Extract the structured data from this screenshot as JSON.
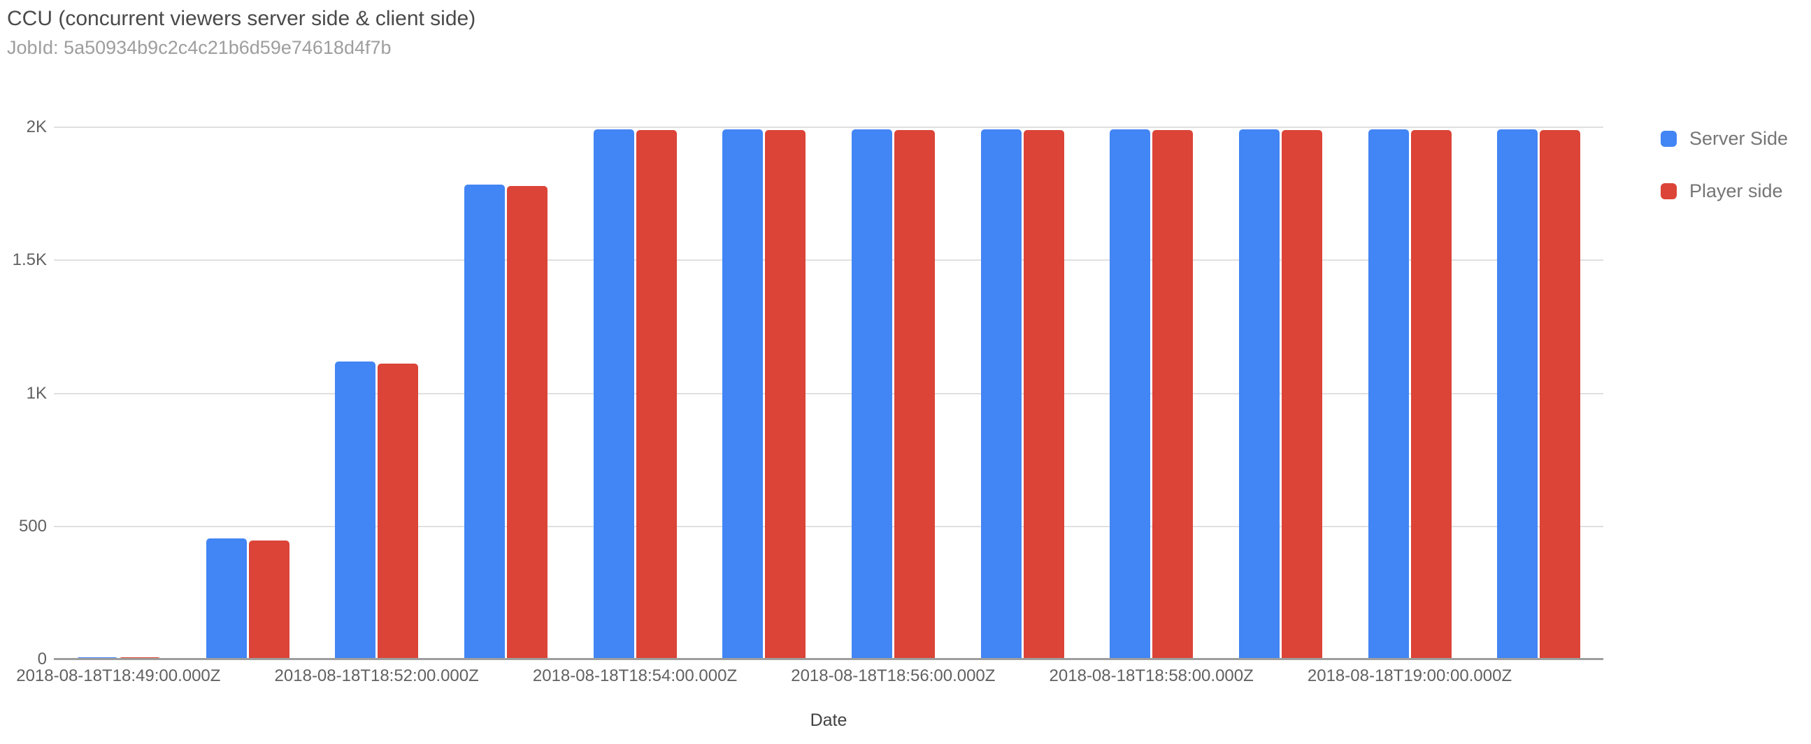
{
  "header": {
    "title": "CCU (concurrent viewers server side & client side)",
    "subtitle": "JobId: 5a50934b9c2c4c21b6d59e74618d4f7b"
  },
  "chart_data": {
    "type": "bar",
    "title": "CCU (concurrent viewers server side & client side)",
    "subtitle": "JobId: 5a50934b9c2c4c21b6d59e74618d4f7b",
    "xlabel": "Date",
    "ylabel": "",
    "ylim": [
      0,
      2000
    ],
    "grid": true,
    "legend_position": "right",
    "num_groups": 12,
    "y_ticks": [
      {
        "label": "0",
        "value": 0
      },
      {
        "label": "500",
        "value": 500
      },
      {
        "label": "1K",
        "value": 1000
      },
      {
        "label": "1.5K",
        "value": 1500
      },
      {
        "label": "2K",
        "value": 2000
      }
    ],
    "x_ticks": [
      {
        "index": 0,
        "label": "2018-08-18T18:49:00.000Z"
      },
      {
        "index": 2,
        "label": "2018-08-18T18:52:00.000Z"
      },
      {
        "index": 4,
        "label": "2018-08-18T18:54:00.000Z"
      },
      {
        "index": 6,
        "label": "2018-08-18T18:56:00.000Z"
      },
      {
        "index": 8,
        "label": "2018-08-18T18:58:00.000Z"
      },
      {
        "index": 10,
        "label": "2018-08-18T19:00:00.000Z"
      }
    ],
    "series": [
      {
        "name": "Server Side",
        "color": "#4285F4",
        "values": [
          8,
          455,
          1120,
          1785,
          1992,
          1992,
          1992,
          1992,
          1992,
          1992,
          1992,
          1992
        ]
      },
      {
        "name": "Player side",
        "color": "#DB4437",
        "values": [
          8,
          448,
          1112,
          1778,
          1990,
          1990,
          1990,
          1990,
          1990,
          1990,
          1990,
          1990
        ]
      }
    ]
  }
}
